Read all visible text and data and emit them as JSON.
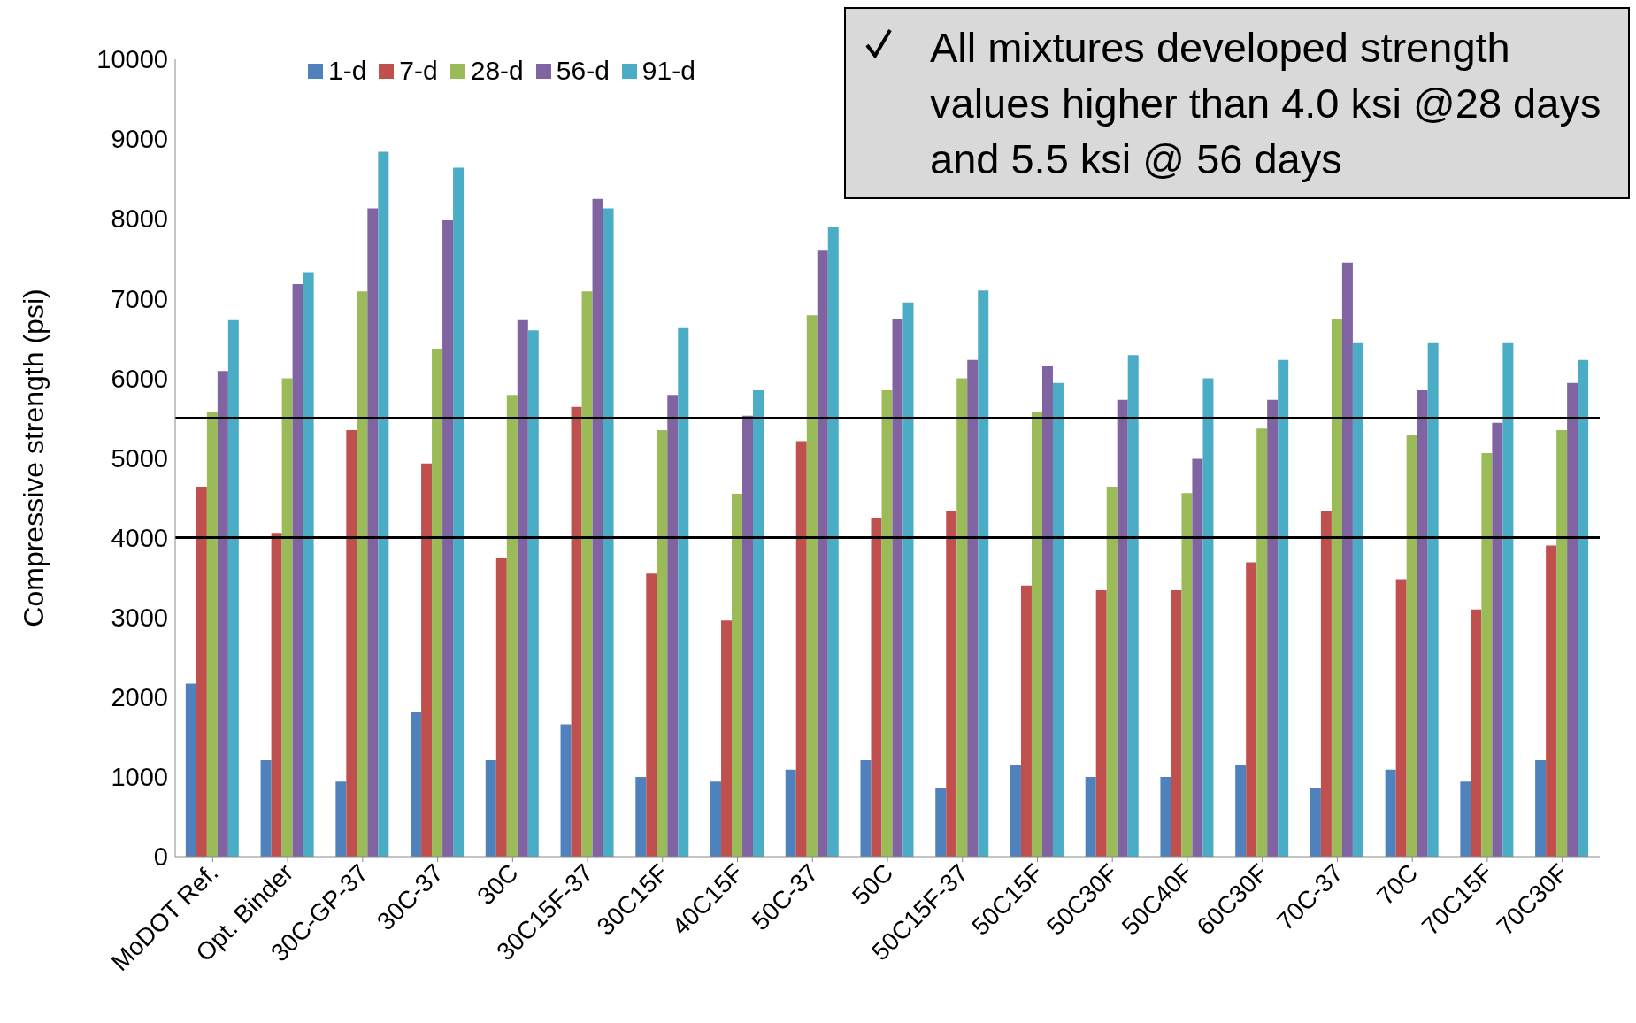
{
  "chart_data": {
    "type": "bar",
    "ylabel": "Compressive  strength (psi)",
    "categories": [
      "MoDOT Ref.",
      "Opt. Binder",
      "30C-GP-37",
      "30C-37",
      "30C",
      "30C15F-37",
      "30C15F",
      "40C15F",
      "50C-37",
      "50C",
      "50C15F-37",
      "50C15F",
      "50C30F",
      "50C40F",
      "60C30F",
      "70C-37",
      "70C",
      "70C15F",
      "70C30F"
    ],
    "series": [
      {
        "name": "1-d",
        "color": "#4f81bd",
        "values": [
          2170,
          1210,
          940,
          1810,
          1210,
          1660,
          1000,
          940,
          1090,
          1210,
          860,
          1150,
          1000,
          1000,
          1150,
          860,
          1090,
          940,
          1210
        ]
      },
      {
        "name": "7-d",
        "color": "#c0504d",
        "values": [
          4640,
          4060,
          5350,
          4930,
          3750,
          5640,
          3550,
          2960,
          5210,
          4250,
          4340,
          3400,
          3340,
          3340,
          3690,
          4340,
          3480,
          3100,
          3900
        ]
      },
      {
        "name": "28-d",
        "color": "#9bbb59",
        "values": [
          5580,
          6000,
          7090,
          6370,
          5790,
          7090,
          5350,
          4550,
          6790,
          5850,
          6000,
          5580,
          4640,
          4560,
          5370,
          6740,
          5290,
          5060,
          5350
        ]
      },
      {
        "name": "56-d",
        "color": "#8064a2",
        "values": [
          6090,
          7180,
          8130,
          7980,
          6730,
          8250,
          5790,
          5530,
          7600,
          6740,
          6230,
          6150,
          5730,
          4990,
          5730,
          7450,
          5850,
          5440,
          5940
        ]
      },
      {
        "name": "91-d",
        "color": "#4bacc6",
        "values": [
          6730,
          7330,
          8840,
          8640,
          6600,
          8130,
          6630,
          5850,
          7900,
          6950,
          7100,
          5940,
          6290,
          6000,
          6230,
          6440,
          6440,
          6440,
          6230
        ]
      }
    ],
    "ylim": [
      0,
      10000
    ],
    "yticks": [
      0,
      1000,
      2000,
      3000,
      4000,
      5000,
      6000,
      7000,
      8000,
      9000,
      10000
    ],
    "ref_lines": [
      {
        "axis": "y",
        "value": 4000,
        "color": "#000000"
      },
      {
        "axis": "y",
        "value": 5500,
        "color": "#000000"
      }
    ],
    "annotations": [
      "All mixtures developed strength values higher than 4.0 ksi @28 days and 5.5 ksi @ 56 days"
    ],
    "legend": "top",
    "grid": false
  }
}
